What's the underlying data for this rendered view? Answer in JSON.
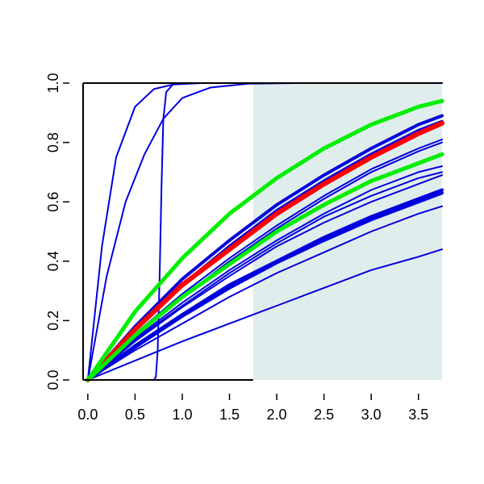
{
  "chart_data": {
    "type": "line",
    "title": "",
    "xlabel": "",
    "ylabel": "",
    "xlim": [
      -0.05,
      3.75
    ],
    "ylim": [
      0,
      1
    ],
    "x_ticks": [
      "0.0",
      "0.5",
      "1.0",
      "1.5",
      "2.0",
      "2.5",
      "3.0",
      "3.5"
    ],
    "y_ticks": [
      "0.0",
      "0.2",
      "0.4",
      "0.6",
      "0.8",
      "1.0"
    ],
    "shaded_region": {
      "x_from": 1.75,
      "x_to": 3.75,
      "color": "#e0eded"
    },
    "colors": {
      "blue": "#0000dd",
      "red": "#ff0000",
      "green": "#00ee00"
    },
    "series": [
      {
        "color": "blue",
        "width": 2,
        "points": [
          [
            0,
            0
          ],
          [
            0.15,
            0.45
          ],
          [
            0.3,
            0.75
          ],
          [
            0.5,
            0.92
          ],
          [
            0.7,
            0.98
          ],
          [
            0.9,
            0.995
          ],
          [
            1.2,
            1
          ],
          [
            3.75,
            1
          ]
        ]
      },
      {
        "color": "blue",
        "width": 2,
        "points": [
          [
            0,
            0
          ],
          [
            0.2,
            0.35
          ],
          [
            0.4,
            0.6
          ],
          [
            0.6,
            0.76
          ],
          [
            0.8,
            0.88
          ],
          [
            1.0,
            0.95
          ],
          [
            1.3,
            0.985
          ],
          [
            1.7,
            0.998
          ],
          [
            2.2,
            1
          ],
          [
            3.75,
            1
          ]
        ]
      },
      {
        "color": "blue",
        "width": 2,
        "points": [
          [
            0.7,
            0
          ],
          [
            0.72,
            0.01
          ],
          [
            0.74,
            0.1
          ],
          [
            0.76,
            0.35
          ],
          [
            0.78,
            0.65
          ],
          [
            0.8,
            0.88
          ],
          [
            0.83,
            0.97
          ],
          [
            0.9,
            0.995
          ],
          [
            1.0,
            1
          ],
          [
            3.75,
            1
          ]
        ]
      },
      {
        "color": "blue",
        "width": 4,
        "points": [
          [
            0,
            0
          ],
          [
            0.5,
            0.17
          ],
          [
            1.0,
            0.32
          ],
          [
            1.5,
            0.45
          ],
          [
            2.0,
            0.57
          ],
          [
            2.5,
            0.67
          ],
          [
            3.0,
            0.76
          ],
          [
            3.5,
            0.84
          ],
          [
            3.75,
            0.87
          ]
        ]
      },
      {
        "color": "blue",
        "width": 4,
        "points": [
          [
            0,
            0
          ],
          [
            0.5,
            0.18
          ],
          [
            1.0,
            0.34
          ],
          [
            1.5,
            0.47
          ],
          [
            2.0,
            0.59
          ],
          [
            2.5,
            0.69
          ],
          [
            3.0,
            0.78
          ],
          [
            3.5,
            0.86
          ],
          [
            3.75,
            0.89
          ]
        ]
      },
      {
        "color": "blue",
        "width": 2,
        "points": [
          [
            0,
            0
          ],
          [
            0.5,
            0.155
          ],
          [
            1.0,
            0.29
          ],
          [
            1.5,
            0.41
          ],
          [
            2.0,
            0.52
          ],
          [
            2.5,
            0.62
          ],
          [
            3.0,
            0.71
          ],
          [
            3.5,
            0.78
          ],
          [
            3.75,
            0.81
          ]
        ]
      },
      {
        "color": "blue",
        "width": 2,
        "points": [
          [
            0,
            0
          ],
          [
            0.5,
            0.15
          ],
          [
            1.0,
            0.28
          ],
          [
            1.5,
            0.4
          ],
          [
            2.0,
            0.51
          ],
          [
            2.5,
            0.61
          ],
          [
            3.0,
            0.7
          ],
          [
            3.5,
            0.77
          ],
          [
            3.75,
            0.8
          ]
        ]
      },
      {
        "color": "blue",
        "width": 2,
        "points": [
          [
            0,
            0
          ],
          [
            0.5,
            0.14
          ],
          [
            1.0,
            0.26
          ],
          [
            1.5,
            0.37
          ],
          [
            2.0,
            0.47
          ],
          [
            2.5,
            0.56
          ],
          [
            3.0,
            0.64
          ],
          [
            3.5,
            0.7
          ],
          [
            3.75,
            0.72
          ]
        ]
      },
      {
        "color": "blue",
        "width": 2,
        "points": [
          [
            0,
            0
          ],
          [
            0.5,
            0.135
          ],
          [
            1.0,
            0.25
          ],
          [
            1.5,
            0.36
          ],
          [
            2.0,
            0.46
          ],
          [
            2.5,
            0.55
          ],
          [
            3.0,
            0.62
          ],
          [
            3.5,
            0.68
          ],
          [
            3.75,
            0.7
          ]
        ]
      },
      {
        "color": "blue",
        "width": 2,
        "points": [
          [
            0,
            0
          ],
          [
            0.5,
            0.13
          ],
          [
            1.0,
            0.245
          ],
          [
            1.5,
            0.35
          ],
          [
            2.0,
            0.45
          ],
          [
            2.5,
            0.53
          ],
          [
            3.0,
            0.6
          ],
          [
            3.5,
            0.66
          ],
          [
            3.75,
            0.69
          ]
        ]
      },
      {
        "color": "blue",
        "width": 4,
        "points": [
          [
            0,
            0
          ],
          [
            0.5,
            0.115
          ],
          [
            1.0,
            0.22
          ],
          [
            1.5,
            0.32
          ],
          [
            2.0,
            0.4
          ],
          [
            2.5,
            0.48
          ],
          [
            3.0,
            0.55
          ],
          [
            3.5,
            0.61
          ],
          [
            3.75,
            0.64
          ]
        ]
      },
      {
        "color": "blue",
        "width": 4,
        "points": [
          [
            0,
            0
          ],
          [
            0.5,
            0.11
          ],
          [
            1.0,
            0.215
          ],
          [
            1.5,
            0.31
          ],
          [
            2.0,
            0.395
          ],
          [
            2.5,
            0.47
          ],
          [
            3.0,
            0.54
          ],
          [
            3.5,
            0.6
          ],
          [
            3.75,
            0.63
          ]
        ]
      },
      {
        "color": "blue",
        "width": 2,
        "points": [
          [
            0,
            0
          ],
          [
            0.5,
            0.1
          ],
          [
            1.0,
            0.19
          ],
          [
            1.5,
            0.28
          ],
          [
            2.0,
            0.36
          ],
          [
            2.5,
            0.43
          ],
          [
            3.0,
            0.5
          ],
          [
            3.5,
            0.56
          ],
          [
            3.75,
            0.585
          ]
        ]
      },
      {
        "color": "blue",
        "width": 2,
        "points": [
          [
            0,
            0
          ],
          [
            0.5,
            0.065
          ],
          [
            1.0,
            0.13
          ],
          [
            1.5,
            0.19
          ],
          [
            2.0,
            0.25
          ],
          [
            2.5,
            0.31
          ],
          [
            3.0,
            0.37
          ],
          [
            3.5,
            0.415
          ],
          [
            3.75,
            0.44
          ]
        ]
      },
      {
        "color": "red",
        "width": 6,
        "points": [
          [
            0,
            0
          ],
          [
            0.5,
            0.17
          ],
          [
            1.0,
            0.32
          ],
          [
            1.5,
            0.44
          ],
          [
            2.0,
            0.56
          ],
          [
            2.5,
            0.66
          ],
          [
            3.0,
            0.75
          ],
          [
            3.5,
            0.83
          ],
          [
            3.75,
            0.865
          ]
        ]
      },
      {
        "color": "green",
        "width": 5,
        "points": [
          [
            0,
            0
          ],
          [
            0.5,
            0.23
          ],
          [
            1.0,
            0.41
          ],
          [
            1.5,
            0.56
          ],
          [
            2.0,
            0.68
          ],
          [
            2.5,
            0.78
          ],
          [
            3.0,
            0.86
          ],
          [
            3.5,
            0.92
          ],
          [
            3.75,
            0.94
          ]
        ]
      },
      {
        "color": "green",
        "width": 5,
        "points": [
          [
            0,
            0
          ],
          [
            0.5,
            0.15
          ],
          [
            1.0,
            0.28
          ],
          [
            1.5,
            0.39
          ],
          [
            2.0,
            0.5
          ],
          [
            2.5,
            0.59
          ],
          [
            3.0,
            0.67
          ],
          [
            3.5,
            0.73
          ],
          [
            3.75,
            0.76
          ]
        ]
      }
    ]
  }
}
